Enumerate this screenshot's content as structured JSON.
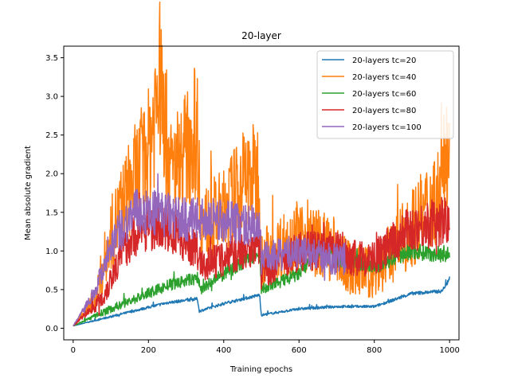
{
  "chart_data": {
    "type": "line",
    "title": "20-layer",
    "xlabel": "Training epochs",
    "ylabel": "Mean absolute gradient",
    "xlim": [
      -25,
      1025
    ],
    "ylim": [
      -0.15,
      3.65
    ],
    "xticks": [
      0,
      200,
      400,
      600,
      800,
      1000
    ],
    "yticks": [
      0.0,
      0.5,
      1.0,
      1.5,
      2.0,
      2.5,
      3.0,
      3.5
    ],
    "grid": false,
    "legend_position": "top-right",
    "noise_seed": 7,
    "series": [
      {
        "name": "20-layers tc=20",
        "color": "#1f77b4",
        "x_end": 1000,
        "noise": 0.025,
        "anchors": [
          [
            0,
            0.03
          ],
          [
            100,
            0.15
          ],
          [
            200,
            0.27
          ],
          [
            250,
            0.33
          ],
          [
            330,
            0.38
          ],
          [
            335,
            0.22
          ],
          [
            400,
            0.32
          ],
          [
            495,
            0.43
          ],
          [
            500,
            0.17
          ],
          [
            600,
            0.25
          ],
          [
            700,
            0.28
          ],
          [
            800,
            0.28
          ],
          [
            900,
            0.45
          ],
          [
            980,
            0.48
          ],
          [
            1000,
            0.65
          ]
        ]
      },
      {
        "name": "20-layers tc=40",
        "color": "#ff7f0e",
        "x_end": 1000,
        "noise": 0.3,
        "anchors": [
          [
            0,
            0.03
          ],
          [
            60,
            0.4
          ],
          [
            100,
            1.2
          ],
          [
            150,
            1.8
          ],
          [
            200,
            2.3
          ],
          [
            230,
            3.2
          ],
          [
            260,
            2.0
          ],
          [
            300,
            2.3
          ],
          [
            330,
            2.6
          ],
          [
            340,
            1.3
          ],
          [
            400,
            1.5
          ],
          [
            450,
            1.9
          ],
          [
            495,
            2.0
          ],
          [
            500,
            0.9
          ],
          [
            600,
            1.2
          ],
          [
            700,
            1.0
          ],
          [
            720,
            0.8
          ],
          [
            800,
            0.7
          ],
          [
            900,
            1.3
          ],
          [
            980,
            1.8
          ],
          [
            1000,
            2.7
          ]
        ]
      },
      {
        "name": "20-layers tc=60",
        "color": "#2ca02c",
        "x_end": 1000,
        "noise": 0.08,
        "anchors": [
          [
            0,
            0.03
          ],
          [
            100,
            0.25
          ],
          [
            200,
            0.45
          ],
          [
            250,
            0.55
          ],
          [
            330,
            0.65
          ],
          [
            340,
            0.5
          ],
          [
            400,
            0.7
          ],
          [
            495,
            1.0
          ],
          [
            500,
            0.5
          ],
          [
            600,
            0.7
          ],
          [
            650,
            1.0
          ],
          [
            700,
            0.9
          ],
          [
            800,
            0.8
          ],
          [
            900,
            1.0
          ],
          [
            1000,
            0.95
          ]
        ]
      },
      {
        "name": "20-layers tc=80",
        "color": "#d62728",
        "x_end": 1000,
        "noise": 0.18,
        "anchors": [
          [
            0,
            0.03
          ],
          [
            80,
            0.4
          ],
          [
            130,
            1.0
          ],
          [
            180,
            1.3
          ],
          [
            250,
            1.3
          ],
          [
            330,
            1.0
          ],
          [
            340,
            0.8
          ],
          [
            400,
            0.9
          ],
          [
            495,
            1.1
          ],
          [
            500,
            0.7
          ],
          [
            600,
            1.0
          ],
          [
            700,
            1.0
          ],
          [
            750,
            0.9
          ],
          [
            800,
            0.9
          ],
          [
            900,
            1.3
          ],
          [
            1000,
            1.4
          ]
        ]
      },
      {
        "name": "20-layers tc=100",
        "color": "#9467bd",
        "x_end": 725,
        "noise": 0.16,
        "anchors": [
          [
            0,
            0.03
          ],
          [
            60,
            0.5
          ],
          [
            100,
            1.1
          ],
          [
            160,
            1.5
          ],
          [
            220,
            1.5
          ],
          [
            300,
            1.4
          ],
          [
            400,
            1.4
          ],
          [
            495,
            1.3
          ],
          [
            500,
            0.9
          ],
          [
            600,
            1.0
          ],
          [
            680,
            0.9
          ],
          [
            725,
            0.9
          ]
        ]
      }
    ]
  }
}
